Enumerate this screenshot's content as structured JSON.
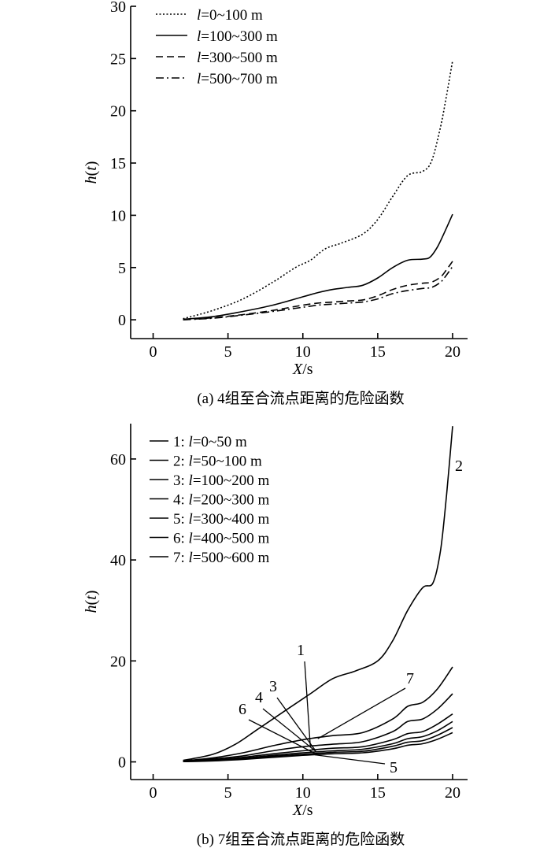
{
  "chart_data": [
    {
      "type": "line",
      "caption": "(a) 4组至合流点距离的危险函数",
      "xlabel_italic": "X",
      "xlabel_unit": "/s",
      "ylabel_italic_h": "h",
      "ylabel_t": "t",
      "xlim": [
        -1.5,
        21
      ],
      "ylim": [
        -1.8,
        30
      ],
      "xticks": [
        "0",
        "5",
        "10",
        "15",
        "20"
      ],
      "yticks": [
        "0",
        "5",
        "10",
        "15",
        "20",
        "25",
        "30"
      ],
      "series": [
        {
          "name": "l=0~100 m",
          "style": "dotted",
          "x": [
            2,
            4,
            6,
            8,
            9.5,
            10.5,
            11.5,
            12.5,
            14,
            15,
            16,
            17,
            18,
            18.6,
            19.2,
            19.6,
            20
          ],
          "y": [
            0.1,
            0.9,
            2.0,
            3.6,
            5.0,
            5.7,
            6.8,
            7.3,
            8.2,
            9.6,
            11.8,
            13.8,
            14.2,
            15.2,
            18.5,
            21.5,
            24.8
          ]
        },
        {
          "name": "l=100~300 m",
          "style": "solid",
          "x": [
            2,
            4,
            6,
            8,
            10,
            11,
            12,
            13,
            14,
            15,
            16,
            17,
            18,
            18.5,
            19,
            19.5,
            20
          ],
          "y": [
            0.05,
            0.3,
            0.8,
            1.4,
            2.2,
            2.6,
            2.9,
            3.1,
            3.3,
            4.0,
            5.0,
            5.7,
            5.8,
            6.0,
            7.0,
            8.5,
            10.1
          ]
        },
        {
          "name": "l=300~500 m",
          "style": "dashed",
          "x": [
            2,
            4,
            6,
            8,
            10,
            11,
            12,
            13,
            14,
            15,
            16,
            17,
            18,
            18.6,
            19.2,
            19.6,
            20
          ],
          "y": [
            0.0,
            0.2,
            0.5,
            0.9,
            1.4,
            1.6,
            1.7,
            1.8,
            1.9,
            2.3,
            2.9,
            3.3,
            3.5,
            3.6,
            4.1,
            4.8,
            5.6
          ]
        },
        {
          "name": "l=500~700 m",
          "style": "dashdot",
          "x": [
            2,
            4,
            6,
            8,
            10,
            11,
            12,
            13,
            14,
            15,
            16,
            17,
            18,
            18.6,
            19.2,
            19.6,
            20
          ],
          "y": [
            0.0,
            0.15,
            0.45,
            0.8,
            1.2,
            1.4,
            1.5,
            1.6,
            1.7,
            2.0,
            2.5,
            2.8,
            3.0,
            3.1,
            3.6,
            4.3,
            5.1
          ]
        }
      ],
      "legend": {
        "placement": "top-left",
        "items": [
          {
            "prefix": "l",
            "text": "=0~100 m",
            "style": "dotted"
          },
          {
            "prefix": "l",
            "text": "=100~300 m",
            "style": "solid"
          },
          {
            "prefix": "l",
            "text": "=300~500 m",
            "style": "dashed"
          },
          {
            "prefix": "l",
            "text": "=500~700 m",
            "style": "dashdot"
          }
        ]
      }
    },
    {
      "type": "line",
      "caption": "(b) 7组至合流点距离的危险函数",
      "xlabel_italic": "X",
      "xlabel_unit": "/s",
      "ylabel_italic_h": "h",
      "ylabel_t": "t",
      "xlim": [
        -1.5,
        21
      ],
      "ylim": [
        -3.5,
        67
      ],
      "xticks": [
        "0",
        "5",
        "10",
        "15",
        "20"
      ],
      "yticks": [
        "0",
        "20",
        "40",
        "60"
      ],
      "series": [
        {
          "name": "1",
          "x": [
            2,
            4,
            6,
            8,
            10,
            12,
            14,
            16,
            17,
            18,
            19,
            20
          ],
          "y": [
            0.2,
            0.6,
            1.2,
            2.2,
            3.0,
            3.5,
            4.0,
            6.0,
            8.0,
            8.5,
            10.5,
            13.5
          ]
        },
        {
          "name": "2",
          "x": [
            2,
            4,
            5.5,
            7,
            9,
            10.5,
            12,
            13.5,
            15,
            16,
            17,
            18,
            18.7,
            19.2,
            19.6,
            20
          ],
          "y": [
            0.3,
            1.5,
            3.5,
            6.5,
            10.5,
            13.5,
            16.5,
            18,
            20,
            24,
            30,
            34.5,
            35.5,
            42,
            53,
            66.5
          ]
        },
        {
          "name": "3",
          "x": [
            2,
            4,
            6,
            8,
            10,
            12,
            14,
            16,
            17,
            18,
            19,
            20
          ],
          "y": [
            0.1,
            0.4,
            0.9,
            1.6,
            2.2,
            2.7,
            3.0,
            4.4,
            5.6,
            6.0,
            7.5,
            9.5
          ]
        },
        {
          "name": "4",
          "x": [
            2,
            4,
            6,
            8,
            10,
            12,
            14,
            16,
            17,
            18,
            19,
            20
          ],
          "y": [
            0.1,
            0.3,
            0.7,
            1.3,
            1.8,
            2.2,
            2.5,
            3.6,
            4.6,
            5.0,
            6.2,
            8.0
          ]
        },
        {
          "name": "5",
          "x": [
            2,
            4,
            6,
            8,
            10,
            12,
            14,
            16,
            17,
            18,
            19,
            20
          ],
          "y": [
            0.05,
            0.2,
            0.5,
            0.9,
            1.3,
            1.6,
            1.8,
            2.6,
            3.3,
            3.6,
            4.5,
            5.8
          ]
        },
        {
          "name": "6",
          "x": [
            2,
            4,
            6,
            8,
            10,
            12,
            14,
            16,
            17,
            18,
            19,
            20
          ],
          "y": [
            0.1,
            0.3,
            0.6,
            1.1,
            1.5,
            1.9,
            2.1,
            3.1,
            3.9,
            4.2,
            5.3,
            6.8
          ]
        },
        {
          "name": "7",
          "x": [
            2,
            4,
            6,
            8,
            10,
            12,
            14,
            16,
            17,
            18,
            19,
            20
          ],
          "y": [
            0.2,
            0.8,
            1.8,
            3.2,
            4.4,
            5.2,
            5.8,
            8.5,
            11.0,
            11.8,
            14.5,
            18.8
          ]
        }
      ],
      "legend": {
        "placement": "top-left",
        "items": [
          {
            "num": "1: ",
            "prefix": "l",
            "text": "=0~50 m"
          },
          {
            "num": "2: ",
            "prefix": "l",
            "text": "=50~100 m"
          },
          {
            "num": "3: ",
            "prefix": "l",
            "text": "=100~200 m"
          },
          {
            "num": "4: ",
            "prefix": "l",
            "text": "=200~300 m"
          },
          {
            "num": "5: ",
            "prefix": "l",
            "text": "=300~400 m"
          },
          {
            "num": "6: ",
            "prefix": "l",
            "text": "=400~500 m"
          },
          {
            "num": "7: ",
            "prefix": "l",
            "text": "=500~600 m"
          }
        ]
      },
      "annotations": [
        {
          "label": "1",
          "x": 10.5,
          "y": 3.0
        },
        {
          "label": "2",
          "x": 20,
          "y": 64
        },
        {
          "label": "3",
          "x": 10.8,
          "y": 2.4
        },
        {
          "label": "4",
          "x": 10.9,
          "y": 2.0
        },
        {
          "label": "5",
          "x": 10.8,
          "y": 1.4
        },
        {
          "label": "6",
          "x": 10.8,
          "y": 1.7
        },
        {
          "label": "7",
          "x": 11.0,
          "y": 4.6
        }
      ]
    }
  ]
}
